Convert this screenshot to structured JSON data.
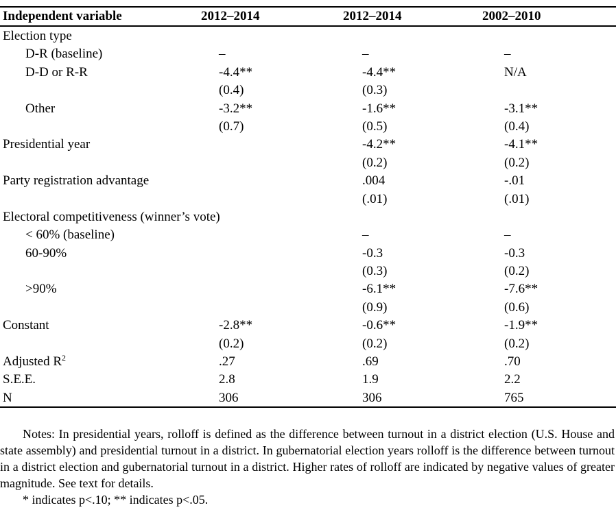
{
  "header": {
    "col0": "Independent variable",
    "col1": "2012–2014",
    "col2": "2012–2014",
    "col3": "2002–2010"
  },
  "rows": [
    {
      "label": "Election type",
      "indent": false,
      "v1": "",
      "v2": "",
      "v3": ""
    },
    {
      "label": "D-R (baseline)",
      "indent": true,
      "v1": "–",
      "v2": "–",
      "v3": "–"
    },
    {
      "label": "D-D or R-R",
      "indent": true,
      "v1": "-4.4**",
      "v2": "-4.4**",
      "v3": "N/A"
    },
    {
      "label": "",
      "indent": true,
      "v1": "(0.4)",
      "v2": "(0.3)",
      "v3": ""
    },
    {
      "label": "Other",
      "indent": true,
      "v1": "-3.2**",
      "v2": "-1.6**",
      "v3": "-3.1**"
    },
    {
      "label": "",
      "indent": true,
      "v1": "(0.7)",
      "v2": "(0.5)",
      "v3": "(0.4)"
    },
    {
      "label": "Presidential year",
      "indent": false,
      "v1": "",
      "v2": "-4.2**",
      "v3": "-4.1**"
    },
    {
      "label": "",
      "indent": false,
      "v1": "",
      "v2": "(0.2)",
      "v3": "(0.2)"
    },
    {
      "label": "Party registration advantage",
      "indent": false,
      "v1": "",
      "v2": ".004",
      "v3": "-.01"
    },
    {
      "label": "",
      "indent": false,
      "v1": "",
      "v2": "(.01)",
      "v3": "(.01)"
    },
    {
      "label": "Electoral competitiveness (winner’s vote)",
      "indent": false,
      "v1": "",
      "v2": "",
      "v3": ""
    },
    {
      "label": "< 60% (baseline)",
      "indent": true,
      "v1": "",
      "v2": "–",
      "v3": "–"
    },
    {
      "label": "60-90%",
      "indent": true,
      "v1": "",
      "v2": "-0.3",
      "v3": "-0.3"
    },
    {
      "label": "",
      "indent": true,
      "v1": "",
      "v2": "(0.3)",
      "v3": "(0.2)"
    },
    {
      "label": ">90%",
      "indent": true,
      "v1": "",
      "v2": "-6.1**",
      "v3": "-7.6**"
    },
    {
      "label": "",
      "indent": true,
      "v1": "",
      "v2": "(0.9)",
      "v3": "(0.6)"
    },
    {
      "label": "Constant",
      "indent": false,
      "v1": "-2.8**",
      "v2": "-0.6**",
      "v3": "-1.9**"
    },
    {
      "label": "",
      "indent": false,
      "v1": "(0.2)",
      "v2": "(0.2)",
      "v3": "(0.2)"
    },
    {
      "label": "Adjusted R",
      "sup": "2",
      "indent": false,
      "v1": ".27",
      "v2": ".69",
      "v3": ".70"
    },
    {
      "label": "S.E.E.",
      "indent": false,
      "v1": "2.8",
      "v2": "1.9",
      "v3": "2.2"
    },
    {
      "label": "N",
      "indent": false,
      "v1": "306",
      "v2": "306",
      "v3": "765"
    }
  ],
  "notes": {
    "text": "Notes: In presidential years, rolloff is defined as the difference between turnout in a district election (U.S. House and state assembly) and presidential turnout in a district. In gubernatorial election years rolloff is the difference between turnout in a district election and gubernatorial turnout in a district. Higher rates of rolloff are indicated by negative values of greater magnitude. See text for details.",
    "significance": "* indicates p<.10; ** indicates p<.05."
  }
}
